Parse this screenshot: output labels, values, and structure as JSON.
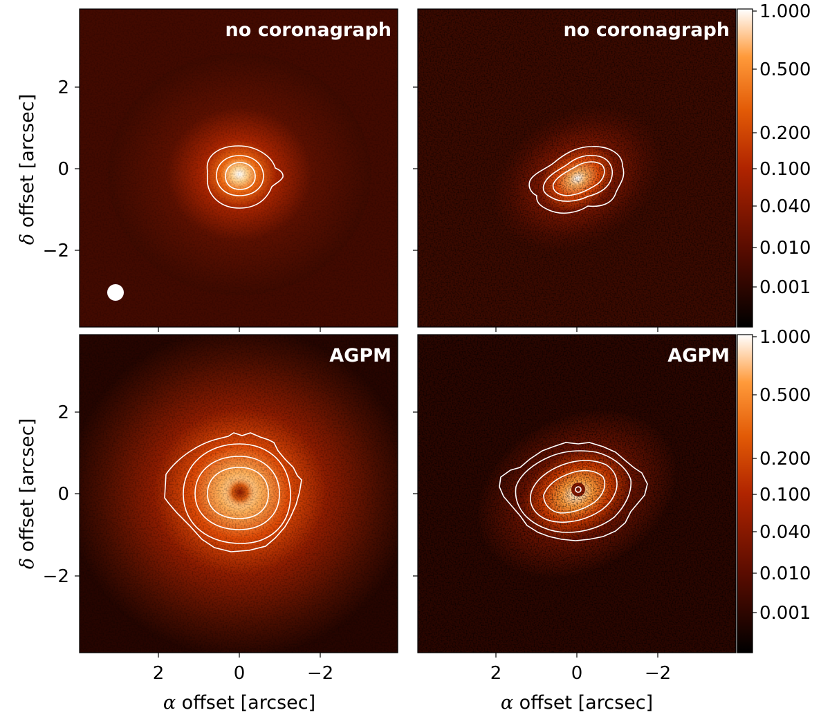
{
  "chart_data": [
    {
      "type": "heatmap",
      "panel_label": "no coronagraph",
      "position": "top-left",
      "ylabel_prefix": "δ",
      "ylabel": "offset [arcsec]",
      "xlabel": "",
      "xlim": [
        3.9,
        -3.9
      ],
      "ylim": [
        -3.9,
        3.9
      ],
      "x_ticks": [
        2,
        0,
        -2
      ],
      "y_ticks": [
        2,
        0,
        -2
      ],
      "x_tick_labels": [],
      "y_tick_labels": [
        "2",
        "0",
        "−2"
      ],
      "colormap": "gist_heat",
      "peak_center": [
        0.0,
        -0.15
      ],
      "contour_levels_relative": [
        0.05,
        0.15,
        0.35
      ],
      "beam_marker": {
        "x": 3.0,
        "y": -3.0,
        "diameter_arcsec": 0.4,
        "color": "#ffffff"
      }
    },
    {
      "type": "heatmap",
      "panel_label": "no coronagraph",
      "position": "top-right",
      "xlim": [
        3.9,
        -3.9
      ],
      "ylim": [
        -3.9,
        3.9
      ],
      "x_ticks": [
        2,
        0,
        -2
      ],
      "y_ticks": [
        2,
        0,
        -2
      ],
      "x_tick_labels": [],
      "y_tick_labels": [],
      "colormap": "gist_heat",
      "peak_center": [
        0.0,
        -0.15
      ],
      "elongation_pa_deg": 45,
      "colorbar": {
        "scale": "log",
        "ticks": [
          "1.000",
          "0.500",
          "0.200",
          "0.100",
          "0.040",
          "0.010",
          "0.001"
        ]
      }
    },
    {
      "type": "heatmap",
      "panel_label": "AGPM",
      "position": "bottom-left",
      "ylabel_prefix": "δ",
      "ylabel": "offset [arcsec]",
      "xlabel_prefix": "α",
      "xlabel": "offset [arcsec]",
      "xlim": [
        3.9,
        -3.9
      ],
      "ylim": [
        -3.9,
        3.9
      ],
      "x_ticks": [
        2,
        0,
        -2
      ],
      "y_ticks": [
        2,
        0,
        -2
      ],
      "x_tick_labels": [
        "2",
        "0",
        "−2"
      ],
      "y_tick_labels": [
        "2",
        "0",
        "−2"
      ],
      "colormap": "gist_heat",
      "peak_center": [
        0.0,
        0.0
      ],
      "central_hole": true
    },
    {
      "type": "heatmap",
      "panel_label": "AGPM",
      "position": "bottom-right",
      "xlabel_prefix": "α",
      "xlabel": "offset [arcsec]",
      "xlim": [
        3.9,
        -3.9
      ],
      "ylim": [
        -3.9,
        3.9
      ],
      "x_ticks": [
        2,
        0,
        -2
      ],
      "y_ticks": [
        2,
        0,
        -2
      ],
      "x_tick_labels": [
        "2",
        "0",
        "−2"
      ],
      "y_tick_labels": [],
      "colormap": "gist_heat",
      "peak_center": [
        0.0,
        0.0
      ],
      "central_hole": true,
      "elongation_pa_deg": 45,
      "colorbar": {
        "scale": "log",
        "ticks": [
          "1.000",
          "0.500",
          "0.200",
          "0.100",
          "0.040",
          "0.010",
          "0.001"
        ]
      }
    }
  ]
}
